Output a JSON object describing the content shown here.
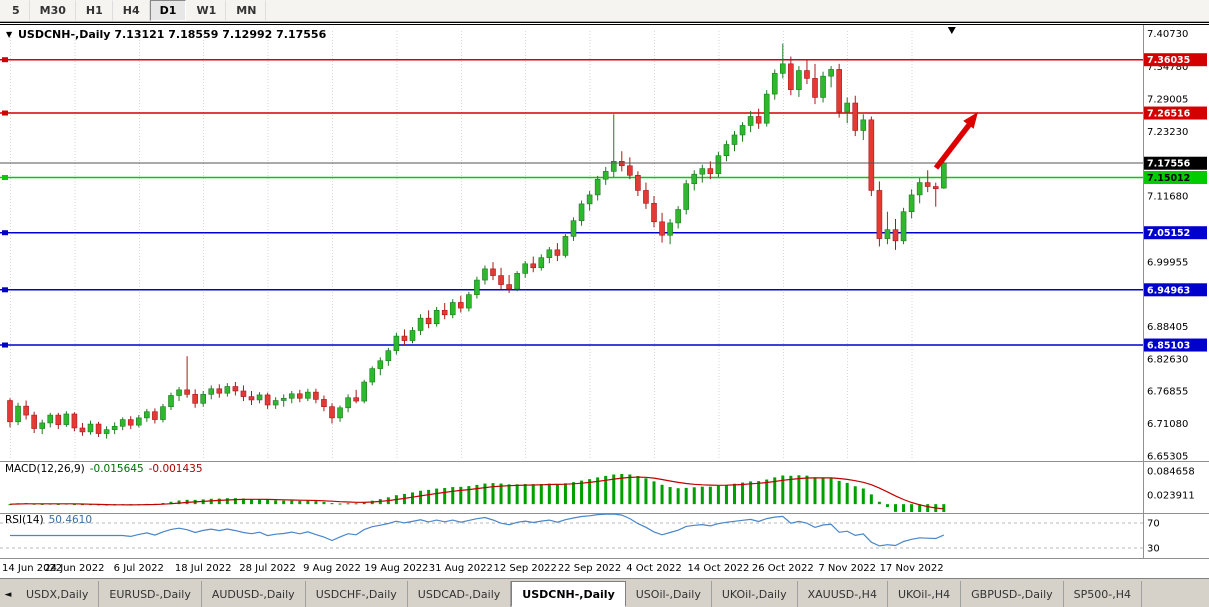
{
  "icons": {
    "symbol_dropdown": "▼",
    "tab_scroll_left": "◄",
    "shift_marker": "▼"
  },
  "toolbar": {
    "timeframes": [
      "5",
      "M30",
      "H1",
      "H4",
      "D1",
      "W1",
      "MN"
    ],
    "active": "D1"
  },
  "chart": {
    "symbol_title": "USDCNH-,Daily",
    "ohlc_text": "7.13121 7.18559 7.12992 7.17556",
    "current_price": "7.17556",
    "y_axis_labels": [
      "7.40730",
      "7.34780",
      "7.29005",
      "7.23230",
      "7.11680",
      "6.99955",
      "6.88405",
      "6.82630",
      "6.76855",
      "6.71080",
      "6.65305"
    ],
    "levels": [
      {
        "price": "7.36035",
        "color": "#D40000",
        "text_color": "#FFFFFF",
        "type": "resistance"
      },
      {
        "price": "7.26516",
        "color": "#D40000",
        "text_color": "#FFFFFF",
        "type": "resistance"
      },
      {
        "price": "7.15012",
        "color": "#00CC00",
        "text_color": "#000000",
        "type": "support"
      },
      {
        "price": "7.05152",
        "color": "#0000CC",
        "text_color": "#FFFFFF",
        "type": "support"
      },
      {
        "price": "6.94963",
        "color": "#0000CC",
        "text_color": "#FFFFFF",
        "type": "support"
      },
      {
        "price": "6.85103",
        "color": "#0000CC",
        "text_color": "#FFFFFF",
        "type": "support"
      }
    ],
    "annotations": [
      {
        "type": "arrow",
        "color": "#DD0000",
        "direction": "up-right"
      }
    ]
  },
  "chart_data": {
    "type": "candlestick",
    "title": "USDCNH-,Daily",
    "ohlc_last": {
      "open": "7.13121",
      "high": "7.18559",
      "low": "7.12992",
      "close": "7.17556"
    },
    "ylim": [
      6.6476,
      7.4116
    ],
    "x_tick_indices": [
      0,
      8,
      16,
      24,
      32,
      40,
      48,
      56,
      64,
      72,
      80,
      88,
      96,
      104,
      112
    ],
    "x_tick_labels": [
      "14 Jun 2022",
      "24 Jun 2022",
      "6 Jul 2022",
      "18 Jul 2022",
      "28 Jul 2022",
      "9 Aug 2022",
      "19 Aug 2022",
      "31 Aug 2022",
      "12 Sep 2022",
      "22 Sep 2022",
      "4 Oct 2022",
      "14 Oct 2022",
      "26 Oct 2022",
      "7 Nov 2022",
      "17 Nov 2022"
    ],
    "candles": [
      [
        6.752,
        6.756,
        6.704,
        6.714
      ],
      [
        6.714,
        6.748,
        6.708,
        6.742
      ],
      [
        6.742,
        6.752,
        6.718,
        6.726
      ],
      [
        6.726,
        6.732,
        6.694,
        6.702
      ],
      [
        6.702,
        6.718,
        6.692,
        6.712
      ],
      [
        6.712,
        6.73,
        6.704,
        6.726
      ],
      [
        6.726,
        6.73,
        6.701,
        6.709
      ],
      [
        6.709,
        6.733,
        6.705,
        6.728
      ],
      [
        6.728,
        6.731,
        6.697,
        6.703
      ],
      [
        6.703,
        6.712,
        6.689,
        6.696
      ],
      [
        6.696,
        6.716,
        6.691,
        6.71
      ],
      [
        6.71,
        6.714,
        6.687,
        6.693
      ],
      [
        6.693,
        6.706,
        6.684,
        6.7
      ],
      [
        6.7,
        6.713,
        6.692,
        6.706
      ],
      [
        6.706,
        6.722,
        6.699,
        6.718
      ],
      [
        6.718,
        6.724,
        6.701,
        6.708
      ],
      [
        6.708,
        6.726,
        6.704,
        6.721
      ],
      [
        6.721,
        6.737,
        6.714,
        6.732
      ],
      [
        6.732,
        6.738,
        6.711,
        6.718
      ],
      [
        6.718,
        6.746,
        6.713,
        6.741
      ],
      [
        6.741,
        6.766,
        6.735,
        6.761
      ],
      [
        6.761,
        6.776,
        6.751,
        6.771
      ],
      [
        6.771,
        6.831,
        6.757,
        6.763
      ],
      [
        6.763,
        6.772,
        6.739,
        6.747
      ],
      [
        6.747,
        6.769,
        6.741,
        6.763
      ],
      [
        6.763,
        6.779,
        6.754,
        6.773
      ],
      [
        6.773,
        6.781,
        6.757,
        6.765
      ],
      [
        6.765,
        6.783,
        6.759,
        6.777
      ],
      [
        6.777,
        6.785,
        6.761,
        6.769
      ],
      [
        6.769,
        6.779,
        6.751,
        6.759
      ],
      [
        6.759,
        6.769,
        6.744,
        6.753
      ],
      [
        6.753,
        6.767,
        6.747,
        6.762
      ],
      [
        6.762,
        6.766,
        6.737,
        6.744
      ],
      [
        6.744,
        6.758,
        6.737,
        6.752
      ],
      [
        6.752,
        6.763,
        6.741,
        6.756
      ],
      [
        6.756,
        6.769,
        6.747,
        6.764
      ],
      [
        6.764,
        6.771,
        6.749,
        6.756
      ],
      [
        6.756,
        6.773,
        6.751,
        6.767
      ],
      [
        6.767,
        6.773,
        6.747,
        6.754
      ],
      [
        6.754,
        6.761,
        6.733,
        6.741
      ],
      [
        6.741,
        6.747,
        6.711,
        6.721
      ],
      [
        6.721,
        6.743,
        6.714,
        6.739
      ],
      [
        6.739,
        6.763,
        6.731,
        6.757
      ],
      [
        6.757,
        6.771,
        6.747,
        6.751
      ],
      [
        6.751,
        6.789,
        6.747,
        6.785
      ],
      [
        6.785,
        6.813,
        6.779,
        6.809
      ],
      [
        6.809,
        6.829,
        6.797,
        6.823
      ],
      [
        6.823,
        6.846,
        6.814,
        6.841
      ],
      [
        6.841,
        6.873,
        6.834,
        6.867
      ],
      [
        6.867,
        6.879,
        6.851,
        6.859
      ],
      [
        6.859,
        6.883,
        6.854,
        6.877
      ],
      [
        6.877,
        6.906,
        6.869,
        6.899
      ],
      [
        6.899,
        6.913,
        6.881,
        6.889
      ],
      [
        6.889,
        6.919,
        6.884,
        6.913
      ],
      [
        6.913,
        6.926,
        6.897,
        6.905
      ],
      [
        6.905,
        6.933,
        6.899,
        6.927
      ],
      [
        6.927,
        6.939,
        6.909,
        6.917
      ],
      [
        6.917,
        6.946,
        6.911,
        6.941
      ],
      [
        6.941,
        6.973,
        6.934,
        6.967
      ],
      [
        6.967,
        6.993,
        6.959,
        6.987
      ],
      [
        6.987,
        6.999,
        6.967,
        6.975
      ],
      [
        6.975,
        6.989,
        6.951,
        6.959
      ],
      [
        6.959,
        6.976,
        6.944,
        6.951
      ],
      [
        6.951,
        6.983,
        6.947,
        6.979
      ],
      [
        6.979,
        7.001,
        6.971,
        6.996
      ],
      [
        6.996,
        7.009,
        6.981,
        6.989
      ],
      [
        6.989,
        7.013,
        6.984,
        7.007
      ],
      [
        7.007,
        7.026,
        6.997,
        7.021
      ],
      [
        7.021,
        7.033,
        7.001,
        7.011
      ],
      [
        7.011,
        7.049,
        7.007,
        7.045
      ],
      [
        7.045,
        7.079,
        7.037,
        7.073
      ],
      [
        7.073,
        7.109,
        7.064,
        7.103
      ],
      [
        7.103,
        7.126,
        7.091,
        7.119
      ],
      [
        7.119,
        7.153,
        7.109,
        7.147
      ],
      [
        7.147,
        7.169,
        7.137,
        7.161
      ],
      [
        7.161,
        7.263,
        7.151,
        7.179
      ],
      [
        7.179,
        7.197,
        7.161,
        7.171
      ],
      [
        7.171,
        7.186,
        7.147,
        7.154
      ],
      [
        7.154,
        7.161,
        7.117,
        7.127
      ],
      [
        7.127,
        7.141,
        7.094,
        7.104
      ],
      [
        7.104,
        7.117,
        7.061,
        7.071
      ],
      [
        7.071,
        7.087,
        7.034,
        7.047
      ],
      [
        7.047,
        7.076,
        7.031,
        7.069
      ],
      [
        7.069,
        7.099,
        7.059,
        7.093
      ],
      [
        7.093,
        7.146,
        7.084,
        7.139
      ],
      [
        7.139,
        7.163,
        7.127,
        7.156
      ],
      [
        7.156,
        7.173,
        7.141,
        7.166
      ],
      [
        7.166,
        7.179,
        7.147,
        7.157
      ],
      [
        7.157,
        7.196,
        7.151,
        7.189
      ],
      [
        7.189,
        7.216,
        7.179,
        7.209
      ],
      [
        7.209,
        7.233,
        7.197,
        7.226
      ],
      [
        7.226,
        7.249,
        7.214,
        7.243
      ],
      [
        7.243,
        7.269,
        7.231,
        7.259
      ],
      [
        7.259,
        7.273,
        7.237,
        7.247
      ],
      [
        7.247,
        7.306,
        7.241,
        7.299
      ],
      [
        7.299,
        7.343,
        7.289,
        7.336
      ],
      [
        7.336,
        7.389,
        7.327,
        7.353
      ],
      [
        7.353,
        7.366,
        7.297,
        7.307
      ],
      [
        7.307,
        7.349,
        7.294,
        7.341
      ],
      [
        7.341,
        7.359,
        7.317,
        7.327
      ],
      [
        7.327,
        7.353,
        7.281,
        7.293
      ],
      [
        7.293,
        7.339,
        7.284,
        7.331
      ],
      [
        7.331,
        7.349,
        7.311,
        7.343
      ],
      [
        7.343,
        7.353,
        7.257,
        7.267
      ],
      [
        7.267,
        7.293,
        7.247,
        7.283
      ],
      [
        7.283,
        7.296,
        7.224,
        7.234
      ],
      [
        7.234,
        7.263,
        7.217,
        7.253
      ],
      [
        7.253,
        7.259,
        7.117,
        7.127
      ],
      [
        7.127,
        7.143,
        7.027,
        7.041
      ],
      [
        7.041,
        7.089,
        7.031,
        7.057
      ],
      [
        7.057,
        7.076,
        7.021,
        7.037
      ],
      [
        7.037,
        7.096,
        7.031,
        7.089
      ],
      [
        7.089,
        7.129,
        7.077,
        7.119
      ],
      [
        7.119,
        7.149,
        7.104,
        7.141
      ],
      [
        7.141,
        7.163,
        7.124,
        7.134
      ],
      [
        7.134,
        7.141,
        7.098,
        7.13
      ],
      [
        7.13121,
        7.18559,
        7.12992,
        7.17556
      ]
    ],
    "indicators": [
      {
        "name": "MACD",
        "params": [
          12,
          26,
          9
        ],
        "current_values": "-0.015645 -0.001435"
      },
      {
        "name": "RSI",
        "params": [
          14
        ],
        "current_value": "50.4610"
      }
    ]
  },
  "macd": {
    "label": "MACD(12,26,9)",
    "main_value": "-0.015645",
    "signal_value": "-0.001435",
    "axis_labels": [
      "0.084658",
      "0.023911"
    ],
    "scale": [
      -0.02,
      0.105
    ]
  },
  "rsi": {
    "label": "RSI(14)",
    "value": "50.4610",
    "axis_labels": [
      "70",
      "30"
    ],
    "levels": [
      70,
      30
    ],
    "scale": [
      15,
      85
    ]
  },
  "tabs": {
    "active": "USDCNH-,Daily",
    "items": [
      {
        "label": "USDX,Daily"
      },
      {
        "label": "EURUSD-,Daily"
      },
      {
        "label": "AUDUSD-,Daily"
      },
      {
        "label": "USDCHF-,Daily"
      },
      {
        "label": "USDCAD-,Daily"
      },
      {
        "label": "USDCNH-,Daily"
      },
      {
        "label": "USOil-,Daily"
      },
      {
        "label": "UKOil-,Daily"
      },
      {
        "label": "XAUUSD-,H4"
      },
      {
        "label": "UKOil-,H4"
      },
      {
        "label": "GBPUSD-,Daily"
      },
      {
        "label": "SP500-,H4"
      }
    ]
  },
  "colors": {
    "bull": "#2EB82E",
    "bull_border": "#1E7A1E",
    "bear": "#E53935",
    "bear_border": "#A81818",
    "macd_histogram": "#00A000",
    "macd_signal": "#C00000",
    "rsi_line": "#4A86C8",
    "current_price_line": "#555555",
    "current_price_bg": "#000000",
    "grid": "#D6D6D6",
    "separator": "#909090",
    "arrow": "#DD0000"
  }
}
